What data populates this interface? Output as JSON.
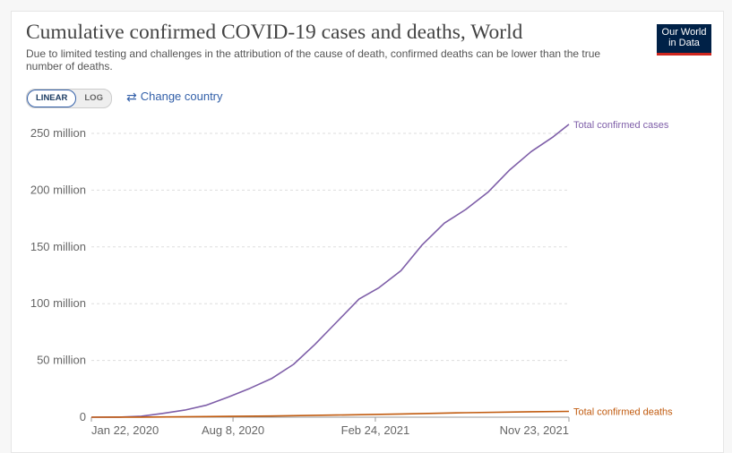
{
  "header": {
    "title": "Cumulative confirmed COVID-19 cases and deaths, World",
    "subtitle": "Due to limited testing and challenges in the attribution of the cause of death, confirmed deaths can be lower than the true number of deaths.",
    "logo_line1": "Our World",
    "logo_line2": "in Data"
  },
  "controls": {
    "scale_linear": "LINEAR",
    "scale_log": "LOG",
    "active_scale": "LINEAR",
    "change_country": "Change country",
    "change_country_icon": "swap-arrows-icon"
  },
  "chart_data": {
    "type": "line",
    "title": "Cumulative confirmed COVID-19 cases and deaths, World",
    "x_ticks": [
      "Jan 22, 2020",
      "Aug 8, 2020",
      "Feb 24, 2021",
      "Nov 23, 2021"
    ],
    "x_range": [
      "2020-01-22",
      "2021-11-23"
    ],
    "y_ticks": [
      0,
      50000000,
      100000000,
      150000000,
      200000000,
      250000000
    ],
    "y_tick_labels": [
      "0",
      "50 million",
      "100 million",
      "150 million",
      "200 million",
      "250 million"
    ],
    "ylim": [
      0,
      260000000
    ],
    "grid": "horizontal dashed",
    "series": [
      {
        "name": "Total confirmed cases",
        "color": "#7e5ea8",
        "points": [
          [
            "2020-01-22",
            0
          ],
          [
            "2020-03-01",
            90000
          ],
          [
            "2020-04-01",
            900000
          ],
          [
            "2020-05-01",
            3300000
          ],
          [
            "2020-06-01",
            6200000
          ],
          [
            "2020-07-01",
            10500000
          ],
          [
            "2020-08-01",
            17700000
          ],
          [
            "2020-09-01",
            25500000
          ],
          [
            "2020-10-01",
            34000000
          ],
          [
            "2020-11-01",
            46500000
          ],
          [
            "2020-12-01",
            64000000
          ],
          [
            "2021-01-01",
            84000000
          ],
          [
            "2021-02-01",
            104000000
          ],
          [
            "2021-03-01",
            114000000
          ],
          [
            "2021-04-01",
            129000000
          ],
          [
            "2021-05-01",
            152000000
          ],
          [
            "2021-06-01",
            171000000
          ],
          [
            "2021-07-01",
            183000000
          ],
          [
            "2021-08-01",
            198000000
          ],
          [
            "2021-09-01",
            218000000
          ],
          [
            "2021-10-01",
            234000000
          ],
          [
            "2021-11-01",
            247000000
          ],
          [
            "2021-11-23",
            258000000
          ]
        ]
      },
      {
        "name": "Total confirmed deaths",
        "color": "#c15b0f",
        "points": [
          [
            "2020-01-22",
            0
          ],
          [
            "2020-04-01",
            50000
          ],
          [
            "2020-07-01",
            520000
          ],
          [
            "2020-10-01",
            1010000
          ],
          [
            "2021-01-01",
            1880000
          ],
          [
            "2021-04-01",
            2850000
          ],
          [
            "2021-07-01",
            3950000
          ],
          [
            "2021-10-01",
            4800000
          ],
          [
            "2021-11-23",
            5150000
          ]
        ]
      }
    ]
  }
}
